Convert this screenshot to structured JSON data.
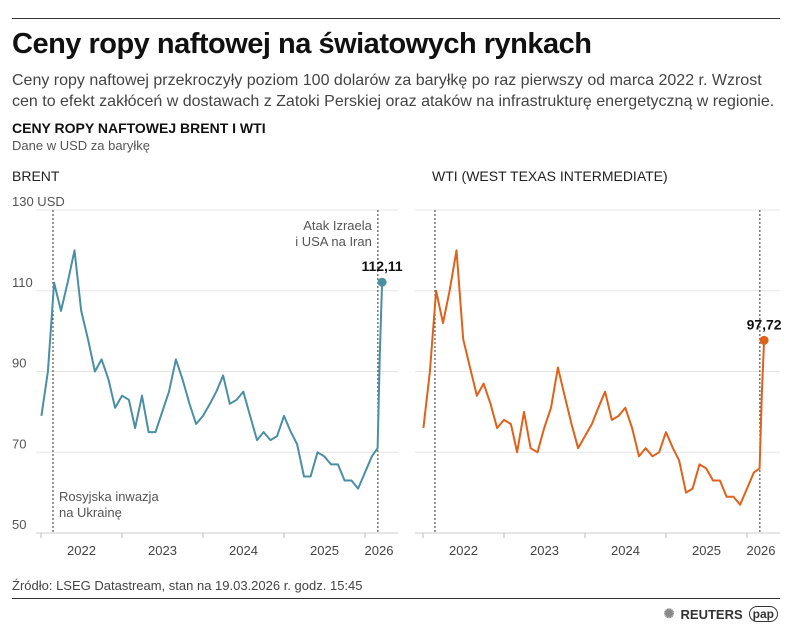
{
  "header": {
    "title": "Ceny ropy naftowej na światowych rynkach",
    "lead": "Ceny ropy naftowej przekroczyły poziom 100 dolarów za baryłkę po raz pierwszy od marca 2022 r. Wzrost cen to efekt zakłóceń w dostawach z Zatoki Perskiej oraz ataków na infrastrukturę energetyczną w regionie.",
    "subtitle": "CENY ROPY NAFTOWEJ BRENT I WTI",
    "unit": "Dane w USD za baryłkę"
  },
  "footer": {
    "source": "Źródło: LSEG Datastream, stan na 19.03.2026 r. godz. 15:45",
    "logo1": "REUTERS",
    "logo2": "pap"
  },
  "colors": {
    "brent": "#4a8fa3",
    "wti": "#e0611a"
  },
  "chart_data": [
    {
      "type": "line",
      "title": "BRENT",
      "ylim": [
        50,
        130
      ],
      "yticks": [
        "130 USD",
        "110",
        "90",
        "70",
        "50"
      ],
      "ytick_values": [
        130,
        110,
        90,
        70,
        50
      ],
      "xticks": [
        "2022",
        "2023",
        "2024",
        "2025",
        "2026"
      ],
      "grid": true,
      "annotations": [
        {
          "date": "2022-02-24",
          "text": [
            "Rosyjska inwazja",
            "na Ukrainę"
          ]
        },
        {
          "date": "2026-02-28",
          "text": [
            "Atak Izraela",
            "i USA na Iran"
          ]
        }
      ],
      "last_label": "112,11",
      "x": [
        "2022-01-03",
        "2022-02-01",
        "2022-03-01",
        "2022-04-01",
        "2022-05-01",
        "2022-06-01",
        "2022-07-01",
        "2022-08-01",
        "2022-09-01",
        "2022-10-01",
        "2022-11-01",
        "2022-12-01",
        "2023-01-01",
        "2023-02-01",
        "2023-03-01",
        "2023-04-01",
        "2023-05-01",
        "2023-06-01",
        "2023-07-01",
        "2023-08-01",
        "2023-09-01",
        "2023-10-01",
        "2023-11-01",
        "2023-12-01",
        "2024-01-01",
        "2024-02-01",
        "2024-03-01",
        "2024-04-01",
        "2024-05-01",
        "2024-06-01",
        "2024-07-01",
        "2024-08-01",
        "2024-09-01",
        "2024-10-01",
        "2024-11-01",
        "2024-12-01",
        "2025-01-01",
        "2025-02-01",
        "2025-03-01",
        "2025-04-01",
        "2025-05-01",
        "2025-06-01",
        "2025-07-01",
        "2025-08-01",
        "2025-09-01",
        "2025-10-01",
        "2025-11-01",
        "2025-12-01",
        "2026-01-01",
        "2026-02-01",
        "2026-02-27",
        "2026-03-09",
        "2026-03-19"
      ],
      "values": [
        79,
        90,
        112,
        105,
        112,
        120,
        105,
        98,
        90,
        93,
        88,
        81,
        84,
        83,
        76,
        84,
        75,
        75,
        80,
        85,
        93,
        88,
        82,
        77,
        79,
        82,
        85,
        89,
        82,
        83,
        85,
        79,
        73,
        75,
        73,
        74,
        79,
        75,
        72,
        64,
        64,
        70,
        69,
        67,
        67,
        63,
        63,
        61,
        65,
        69,
        71,
        95,
        112.11
      ]
    },
    {
      "type": "line",
      "title": "WTI (WEST TEXAS INTERMEDIATE)",
      "ylim": [
        50,
        130
      ],
      "xticks": [
        "2022",
        "2023",
        "2024",
        "2025",
        "2026"
      ],
      "grid": true,
      "last_label": "97,72",
      "x": [
        "2022-01-03",
        "2022-02-01",
        "2022-03-01",
        "2022-04-01",
        "2022-05-01",
        "2022-06-01",
        "2022-07-01",
        "2022-08-01",
        "2022-09-01",
        "2022-10-01",
        "2022-11-01",
        "2022-12-01",
        "2023-01-01",
        "2023-02-01",
        "2023-03-01",
        "2023-04-01",
        "2023-05-01",
        "2023-06-01",
        "2023-07-01",
        "2023-08-01",
        "2023-09-01",
        "2023-10-01",
        "2023-11-01",
        "2023-12-01",
        "2024-01-01",
        "2024-02-01",
        "2024-03-01",
        "2024-04-01",
        "2024-05-01",
        "2024-06-01",
        "2024-07-01",
        "2024-08-01",
        "2024-09-01",
        "2024-10-01",
        "2024-11-01",
        "2024-12-01",
        "2025-01-01",
        "2025-02-01",
        "2025-03-01",
        "2025-04-01",
        "2025-05-01",
        "2025-06-01",
        "2025-07-01",
        "2025-08-01",
        "2025-09-01",
        "2025-10-01",
        "2025-11-01",
        "2025-12-01",
        "2026-01-01",
        "2026-02-01",
        "2026-02-27",
        "2026-03-09",
        "2026-03-19"
      ],
      "values": [
        76,
        90,
        110,
        102,
        110,
        120,
        98,
        91,
        84,
        87,
        82,
        76,
        78,
        77,
        70,
        80,
        71,
        70,
        76,
        81,
        91,
        84,
        77,
        71,
        74,
        77,
        81,
        85,
        78,
        79,
        81,
        76,
        69,
        71,
        69,
        70,
        75,
        71,
        68,
        60,
        61,
        67,
        66,
        63,
        63,
        59,
        59,
        57,
        61,
        65,
        66,
        85,
        97.72
      ]
    }
  ]
}
